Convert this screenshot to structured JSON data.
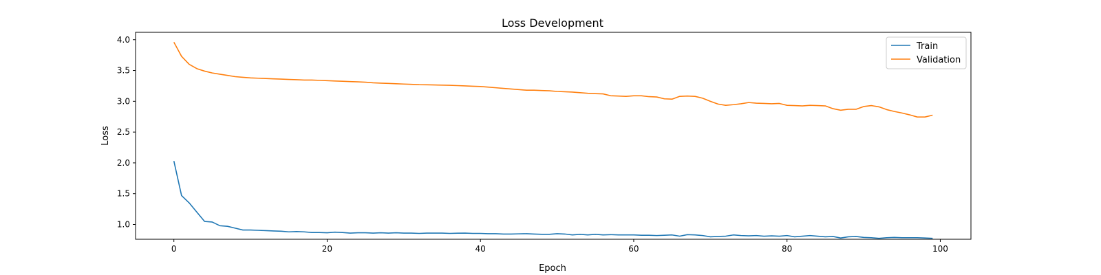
{
  "chart_data": {
    "type": "line",
    "title": "Loss Development",
    "xlabel": "Epoch",
    "ylabel": "Loss",
    "xlim": [
      -5,
      104
    ],
    "ylim": [
      0.76,
      4.12
    ],
    "xticks": [
      0,
      20,
      40,
      60,
      80,
      100
    ],
    "yticks": [
      1.0,
      1.5,
      2.0,
      2.5,
      3.0,
      3.5,
      4.0
    ],
    "grid": false,
    "legend_position": "top-right",
    "series": [
      {
        "name": "Train",
        "color": "#1f77b4",
        "values": [
          2.03,
          1.47,
          1.35,
          1.2,
          1.05,
          1.04,
          0.98,
          0.97,
          0.94,
          0.91,
          0.91,
          0.905,
          0.9,
          0.895,
          0.89,
          0.88,
          0.885,
          0.88,
          0.87,
          0.87,
          0.865,
          0.875,
          0.87,
          0.86,
          0.865,
          0.865,
          0.86,
          0.865,
          0.86,
          0.865,
          0.86,
          0.86,
          0.855,
          0.86,
          0.86,
          0.86,
          0.855,
          0.858,
          0.86,
          0.855,
          0.855,
          0.85,
          0.85,
          0.845,
          0.845,
          0.848,
          0.85,
          0.845,
          0.84,
          0.84,
          0.85,
          0.845,
          0.83,
          0.84,
          0.83,
          0.84,
          0.83,
          0.835,
          0.83,
          0.83,
          0.83,
          0.825,
          0.825,
          0.82,
          0.825,
          0.83,
          0.81,
          0.835,
          0.83,
          0.82,
          0.8,
          0.805,
          0.81,
          0.83,
          0.82,
          0.815,
          0.82,
          0.81,
          0.815,
          0.81,
          0.82,
          0.8,
          0.81,
          0.82,
          0.81,
          0.8,
          0.805,
          0.78,
          0.8,
          0.805,
          0.79,
          0.785,
          0.775,
          0.785,
          0.79,
          0.785,
          0.785,
          0.785,
          0.78,
          0.775
        ]
      },
      {
        "name": "Validation",
        "color": "#ff7f0e",
        "values": [
          3.96,
          3.73,
          3.6,
          3.53,
          3.49,
          3.46,
          3.44,
          3.42,
          3.4,
          3.39,
          3.38,
          3.375,
          3.37,
          3.365,
          3.36,
          3.355,
          3.35,
          3.345,
          3.345,
          3.34,
          3.335,
          3.33,
          3.325,
          3.32,
          3.315,
          3.31,
          3.3,
          3.295,
          3.29,
          3.285,
          3.28,
          3.275,
          3.27,
          3.268,
          3.265,
          3.262,
          3.26,
          3.255,
          3.25,
          3.245,
          3.24,
          3.23,
          3.22,
          3.21,
          3.2,
          3.19,
          3.18,
          3.18,
          3.175,
          3.17,
          3.16,
          3.155,
          3.15,
          3.14,
          3.13,
          3.125,
          3.12,
          3.09,
          3.085,
          3.08,
          3.09,
          3.09,
          3.075,
          3.07,
          3.04,
          3.035,
          3.08,
          3.085,
          3.08,
          3.05,
          3.0,
          2.955,
          2.935,
          2.945,
          2.96,
          2.98,
          2.97,
          2.965,
          2.96,
          2.965,
          2.935,
          2.93,
          2.925,
          2.935,
          2.93,
          2.925,
          2.88,
          2.855,
          2.87,
          2.87,
          2.915,
          2.93,
          2.91,
          2.865,
          2.835,
          2.81,
          2.78,
          2.745,
          2.745,
          2.775
        ]
      }
    ]
  }
}
